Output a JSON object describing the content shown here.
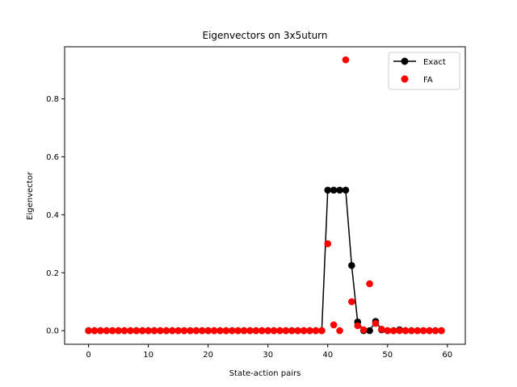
{
  "chart_data": {
    "type": "line",
    "title": "Eigenvectors on 3x5uturn",
    "xlabel": "State-action pairs",
    "ylabel": "Eigenvector",
    "xlim": [
      -4,
      63
    ],
    "ylim": [
      -0.047,
      0.98
    ],
    "xticks": [
      0,
      10,
      20,
      30,
      40,
      50,
      60
    ],
    "yticks": [
      0.0,
      0.2,
      0.4,
      0.6,
      0.8
    ],
    "ytick_labels": [
      "0.0",
      "0.2",
      "0.4",
      "0.6",
      "0.8"
    ],
    "grid": false,
    "legend_placement": "top-right",
    "series": [
      {
        "name": "Exact",
        "style": "line-with-markers",
        "color": "#000000",
        "x": [
          0,
          1,
          2,
          3,
          4,
          5,
          6,
          7,
          8,
          9,
          10,
          11,
          12,
          13,
          14,
          15,
          16,
          17,
          18,
          19,
          20,
          21,
          22,
          23,
          24,
          25,
          26,
          27,
          28,
          29,
          30,
          31,
          32,
          33,
          34,
          35,
          36,
          37,
          38,
          39,
          40,
          41,
          42,
          43,
          44,
          45,
          46,
          47,
          48,
          49,
          50,
          51,
          52,
          53,
          54,
          55,
          56,
          57,
          58,
          59
        ],
        "y": [
          0,
          0,
          0,
          0,
          0,
          0,
          0,
          0,
          0,
          0,
          0,
          0,
          0,
          0,
          0,
          0,
          0,
          0,
          0,
          0,
          0,
          0,
          0,
          0,
          0,
          0,
          0,
          0,
          0,
          0,
          0,
          0,
          0,
          0,
          0,
          0,
          0,
          0,
          0,
          0,
          0.485,
          0.485,
          0.485,
          0.485,
          0.225,
          0.03,
          0.0,
          0.0,
          0.032,
          0.003,
          0,
          0,
          0.003,
          0,
          0,
          0,
          0,
          0,
          0,
          0
        ]
      },
      {
        "name": "FA",
        "style": "markers",
        "color": "#ff0000",
        "x": [
          0,
          1,
          2,
          3,
          4,
          5,
          6,
          7,
          8,
          9,
          10,
          11,
          12,
          13,
          14,
          15,
          16,
          17,
          18,
          19,
          20,
          21,
          22,
          23,
          24,
          25,
          26,
          27,
          28,
          29,
          30,
          31,
          32,
          33,
          34,
          35,
          36,
          37,
          38,
          39,
          40,
          41,
          42,
          43,
          44,
          45,
          46,
          47,
          48,
          49,
          50,
          51,
          52,
          53,
          54,
          55,
          56,
          57,
          58,
          59
        ],
        "y": [
          0,
          0,
          0,
          0,
          0,
          0,
          0,
          0,
          0,
          0,
          0,
          0,
          0,
          0,
          0,
          0,
          0,
          0,
          0,
          0,
          0,
          0,
          0,
          0,
          0,
          0,
          0,
          0,
          0,
          0,
          0,
          0,
          0,
          0,
          0,
          0,
          0,
          0,
          0,
          0,
          0.3,
          0.02,
          0.0,
          0.935,
          0.1,
          0.017,
          0.003,
          0.162,
          0.025,
          0.005,
          0,
          0,
          0,
          0,
          0,
          0,
          0,
          0,
          0,
          0
        ]
      }
    ]
  }
}
